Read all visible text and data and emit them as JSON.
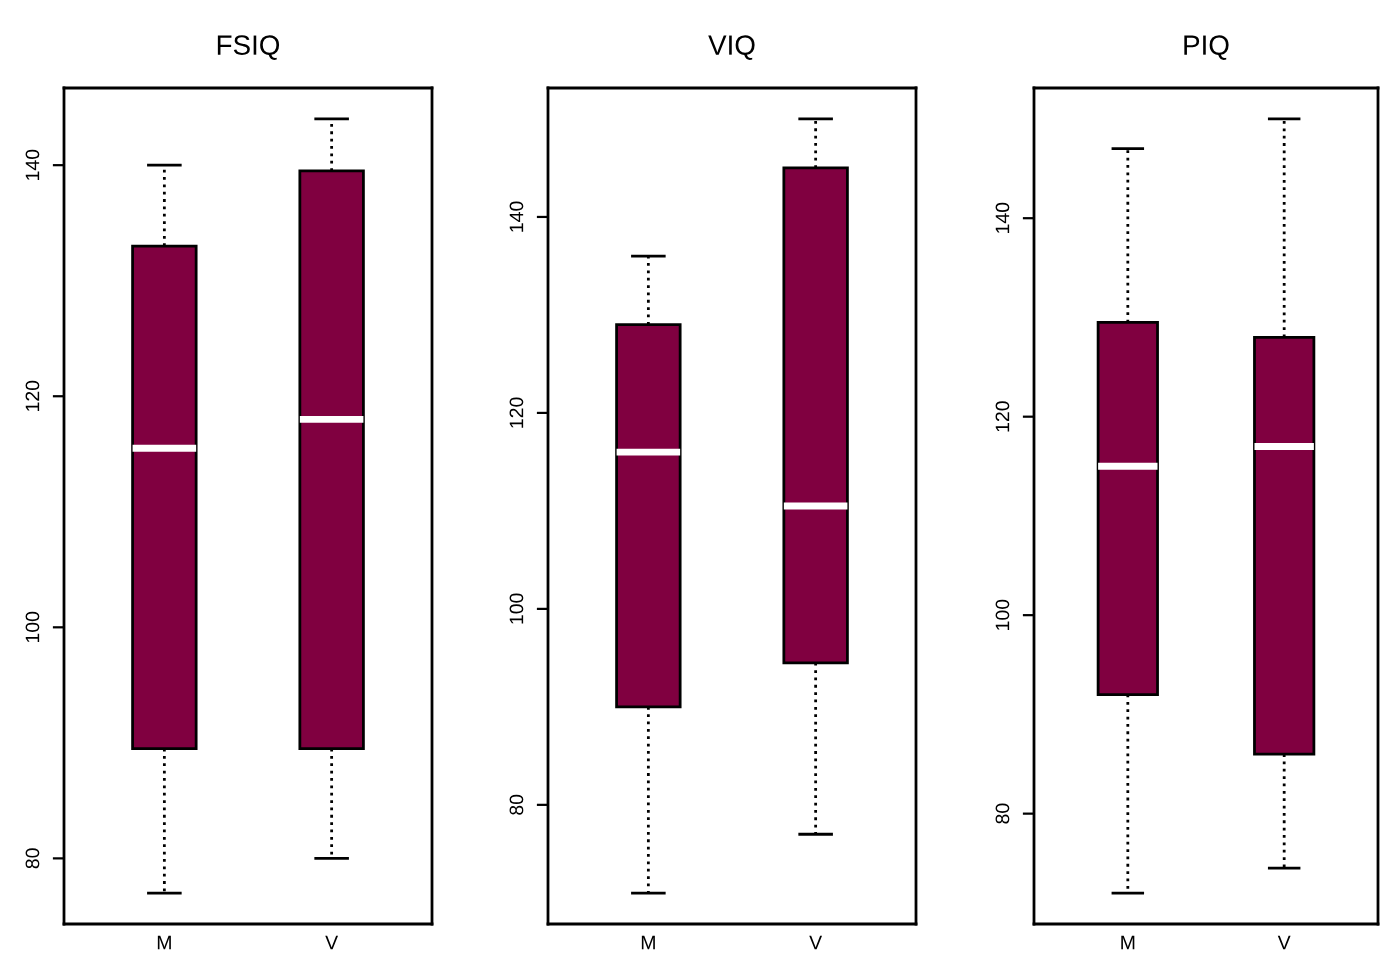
{
  "chart_data": [
    {
      "type": "box",
      "title": "FSIQ",
      "categories": [
        "M",
        "V"
      ],
      "ylim": [
        74.32,
        146.68
      ],
      "yticks": [
        80,
        100,
        120,
        140
      ],
      "series": [
        {
          "color": "#800040",
          "boxes": [
            {
              "low": 77,
              "q1": 89.5,
              "median": 115.5,
              "q3": 133,
              "high": 140
            },
            {
              "low": 80,
              "q1": 89.5,
              "median": 118,
              "q3": 139.5,
              "high": 144
            }
          ]
        }
      ]
    },
    {
      "type": "box",
      "title": "VIQ",
      "categories": [
        "M",
        "V"
      ],
      "ylim": [
        67.84,
        153.16
      ],
      "yticks": [
        80,
        100,
        120,
        140
      ],
      "series": [
        {
          "color": "#800040",
          "boxes": [
            {
              "low": 71,
              "q1": 90,
              "median": 116,
              "q3": 129,
              "high": 136
            },
            {
              "low": 77,
              "q1": 94.5,
              "median": 110.5,
              "q3": 145,
              "high": 150
            }
          ]
        }
      ]
    },
    {
      "type": "box",
      "title": "PIQ",
      "categories": [
        "M",
        "V"
      ],
      "ylim": [
        68.88,
        153.12
      ],
      "yticks": [
        80,
        100,
        120,
        140
      ],
      "series": [
        {
          "color": "#800040",
          "boxes": [
            {
              "low": 72,
              "q1": 92,
              "median": 115,
              "q3": 129.5,
              "high": 147
            },
            {
              "low": 74.5,
              "q1": 86,
              "median": 117,
              "q3": 128,
              "high": 150
            }
          ]
        }
      ]
    }
  ]
}
